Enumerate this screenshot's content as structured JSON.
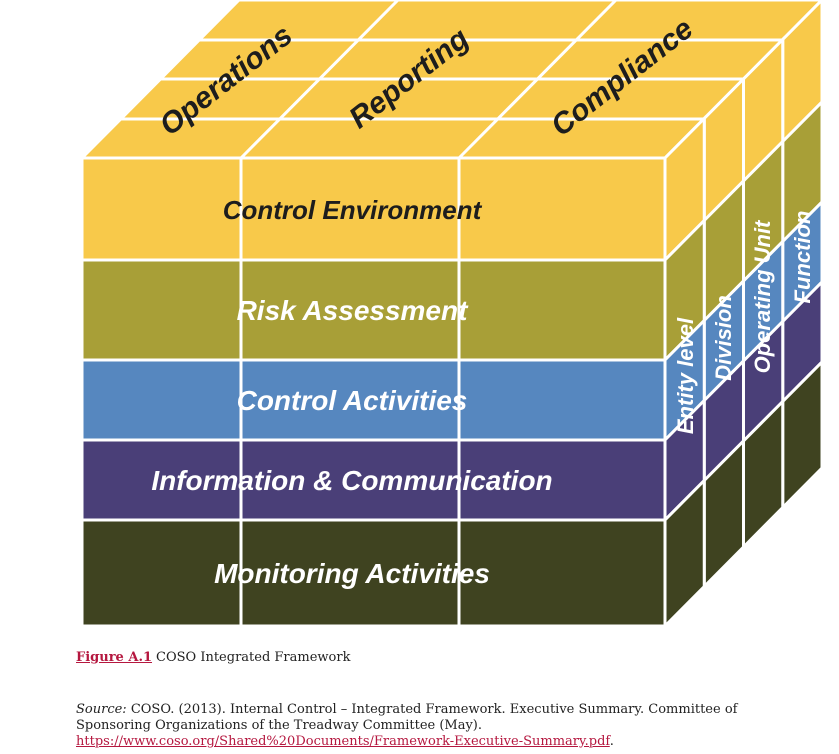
{
  "cube": {
    "top_labels": [
      "Operations",
      "Reporting",
      "Compliance"
    ],
    "front_rows": [
      {
        "label": "Control Environment",
        "color": "#f8c94a",
        "text_color": "#1d1d1d"
      },
      {
        "label": "Risk Assessment",
        "color": "#a89f37",
        "text_color": "#ffffff"
      },
      {
        "label": "Control Activities",
        "color": "#5687bf",
        "text_color": "#ffffff"
      },
      {
        "label": "Information & Communication",
        "color": "#4a3f78",
        "text_color": "#ffffff"
      },
      {
        "label": "Monitoring Activities",
        "color": "#3f4320",
        "text_color": "#ffffff"
      }
    ],
    "side_labels": [
      "Entity level",
      "Division",
      "Operating Unit",
      "Function"
    ],
    "top_color": "#f8c94a",
    "grid_color": "#ffffff"
  },
  "caption": {
    "figure_ref": "Figure A.1",
    "text": "COSO Integrated Framework"
  },
  "source": {
    "label": "Source:",
    "text": "COSO. (2013). Internal Control – Integrated Framework. Executive Summary. Committee of Sponsoring Organizations of the Treadway Committee (May).",
    "url": "https://www.coso.org/Shared%20Documents/Framework-Executive-Summary.pdf",
    "trailing": "."
  }
}
